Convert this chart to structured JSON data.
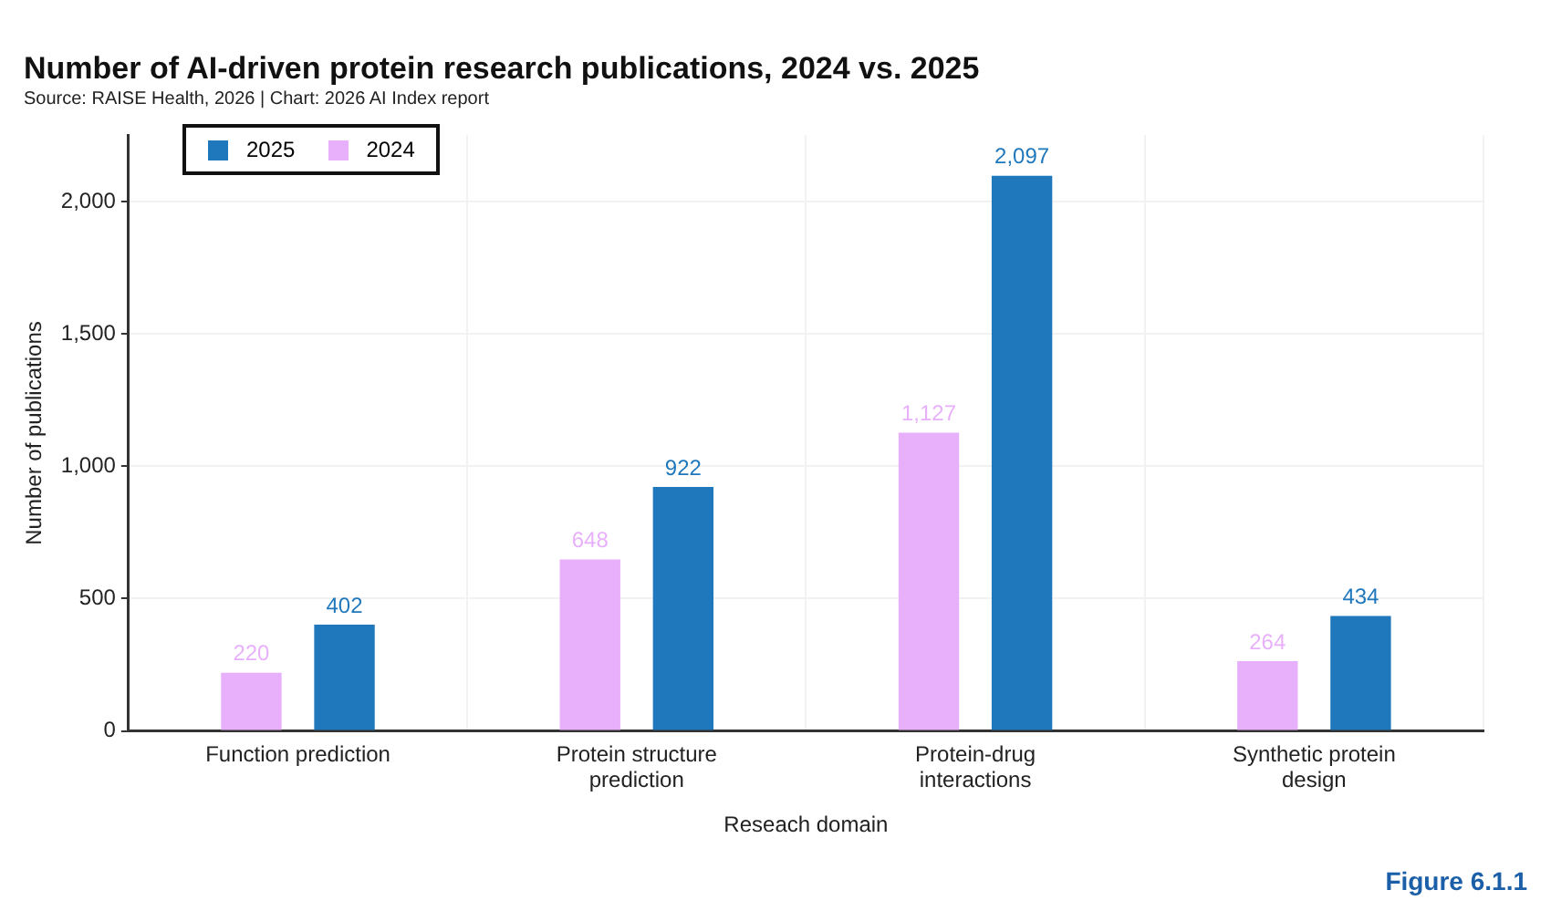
{
  "chart_data": {
    "type": "bar",
    "title": "Number of AI-driven protein research publications, 2024 vs. 2025",
    "subtitle": "Source: RAISE Health, 2026 | Chart: 2026 AI Index report",
    "xlabel": "Reseach domain",
    "ylabel": "Number of publications",
    "categories": [
      "Function prediction",
      "Protein structure prediction",
      "Protein-drug interactions",
      "Synthetic protein design"
    ],
    "series": [
      {
        "name": "2024",
        "color": "#e8b0fa",
        "values": [
          220,
          648,
          1127,
          264
        ],
        "value_labels": [
          "220",
          "648",
          "1,127",
          "264"
        ]
      },
      {
        "name": "2025",
        "color": "#1f77bc",
        "values": [
          402,
          922,
          2097,
          434
        ],
        "value_labels": [
          "402",
          "922",
          "2,097",
          "434"
        ]
      }
    ],
    "ylim": [
      0,
      2250
    ],
    "yticks": [
      0,
      500,
      {
        "value": 1000,
        "label": "1,000"
      },
      {
        "value": 1500,
        "label": "1,500"
      },
      {
        "value": 2000,
        "label": "2,000"
      }
    ],
    "grid": true,
    "legend": "top left",
    "annotations": [
      "Figure 6.1.1"
    ]
  }
}
